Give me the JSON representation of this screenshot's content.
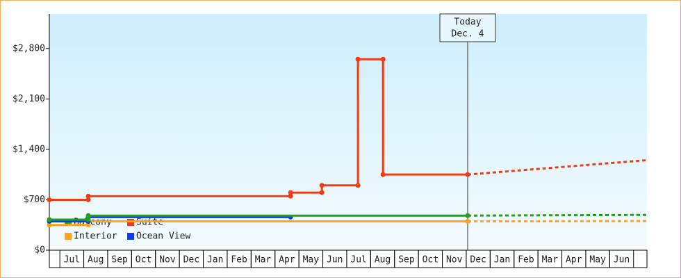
{
  "chart_data": {
    "type": "line",
    "xlim": [
      -0.44,
      24.56
    ],
    "ylim": [
      0,
      3280
    ],
    "xticks": [
      {
        "value": 0.5,
        "label": "Jul"
      },
      {
        "value": 1.5,
        "label": "Aug"
      },
      {
        "value": 2.5,
        "label": "Sep"
      },
      {
        "value": 3.5,
        "label": "Oct"
      },
      {
        "value": 4.5,
        "label": "Nov"
      },
      {
        "value": 5.5,
        "label": "Dec"
      },
      {
        "value": 6.5,
        "label": "Jan"
      },
      {
        "value": 7.5,
        "label": "Feb"
      },
      {
        "value": 8.5,
        "label": "Mar"
      },
      {
        "value": 9.5,
        "label": "Apr"
      },
      {
        "value": 10.5,
        "label": "May"
      },
      {
        "value": 11.5,
        "label": "Jun"
      },
      {
        "value": 12.5,
        "label": "Jul"
      },
      {
        "value": 13.5,
        "label": "Aug"
      },
      {
        "value": 14.5,
        "label": "Sep"
      },
      {
        "value": 15.5,
        "label": "Oct"
      },
      {
        "value": 16.5,
        "label": "Nov"
      },
      {
        "value": 17.5,
        "label": "Dec"
      },
      {
        "value": 18.5,
        "label": "Jan"
      },
      {
        "value": 19.5,
        "label": "Feb"
      },
      {
        "value": 20.5,
        "label": "Mar"
      },
      {
        "value": 21.5,
        "label": "Apr"
      },
      {
        "value": 22.5,
        "label": "May"
      },
      {
        "value": 23.5,
        "label": "Jun"
      }
    ],
    "yticks": [
      {
        "value": 0,
        "label": "$0"
      },
      {
        "value": 700,
        "label": "$700"
      },
      {
        "value": 1400,
        "label": "$1,400"
      },
      {
        "value": 2100,
        "label": "$2,100"
      },
      {
        "value": 2800,
        "label": "$2,800"
      }
    ],
    "annotation": {
      "x": 17.06,
      "lines": [
        "Today",
        "Dec. 4"
      ]
    },
    "series": [
      {
        "name": "Balcony",
        "color": "#22a022",
        "x": [
          -0.44,
          1.19,
          1.19,
          17.06
        ],
        "values": [
          425,
          425,
          480,
          480
        ],
        "forecast": {
          "x": [
            17.06,
            24.56
          ],
          "values": [
            480,
            490
          ]
        }
      },
      {
        "name": "Suite",
        "color": "#f03c14",
        "x": [
          -0.44,
          1.19,
          1.19,
          9.65,
          9.65,
          10.96,
          10.96,
          12.47,
          12.47,
          13.52,
          13.52,
          17.06
        ],
        "values": [
          700,
          700,
          750,
          750,
          800,
          800,
          900,
          900,
          2650,
          2650,
          1050,
          1050
        ],
        "forecast": {
          "x": [
            17.06,
            24.56
          ],
          "values": [
            1050,
            1250
          ]
        }
      },
      {
        "name": "Interior",
        "color": "#ffa31a",
        "x": [
          -0.44,
          1.19,
          1.19,
          17.06
        ],
        "values": [
          350,
          350,
          400,
          400
        ],
        "forecast": {
          "x": [
            17.06,
            24.56
          ],
          "values": [
            400,
            405
          ]
        }
      },
      {
        "name": "Ocean View",
        "color": "#0a3cf0",
        "x": [
          -0.44,
          1.19,
          1.19,
          9.65
        ],
        "values": [
          400,
          400,
          460,
          460
        ]
      }
    ]
  }
}
